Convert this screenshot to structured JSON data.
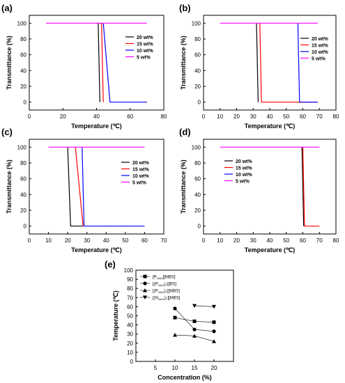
{
  "chart_data": [
    {
      "panel": "(a)",
      "type": "line",
      "xlabel": "Temperature (℃)",
      "ylabel": "Transmittance (%)",
      "xlim": [
        0,
        80
      ],
      "ylim": [
        -10,
        110
      ],
      "xticks": [
        0,
        20,
        40,
        60,
        80
      ],
      "yticks": [
        0,
        20,
        40,
        60,
        80,
        100
      ],
      "legend": "right",
      "series": [
        {
          "name": "20 wt%",
          "color": "#000000",
          "x": [
            40,
            41,
            42
          ],
          "y": [
            100,
            100,
            0
          ]
        },
        {
          "name": "15 wt%",
          "color": "#ff0000",
          "x": [
            42,
            43,
            44
          ],
          "y": [
            100,
            100,
            0
          ]
        },
        {
          "name": "10 wt%",
          "color": "#0000ff",
          "x": [
            44,
            48,
            70
          ],
          "y": [
            100,
            0,
            0
          ]
        },
        {
          "name": "5 wt%",
          "color": "#ff00ff",
          "x": [
            10,
            70
          ],
          "y": [
            100,
            100
          ]
        }
      ]
    },
    {
      "panel": "(b)",
      "type": "line",
      "xlabel": "Temperature (℃)",
      "ylabel": "Transmittance (%)",
      "xlim": [
        0,
        80
      ],
      "ylim": [
        -10,
        110
      ],
      "xticks": [
        0,
        10,
        20,
        30,
        40,
        50,
        60,
        70,
        80
      ],
      "yticks": [
        0,
        20,
        40,
        60,
        80,
        100
      ],
      "legend": "right",
      "series": [
        {
          "name": "20 wt%",
          "color": "#000000",
          "x": [
            32,
            33
          ],
          "y": [
            100,
            0
          ]
        },
        {
          "name": "15 wt%",
          "color": "#ff0000",
          "x": [
            34,
            35,
            69
          ],
          "y": [
            100,
            0,
            0
          ]
        },
        {
          "name": "10 wt%",
          "color": "#0000ff",
          "x": [
            57,
            58,
            69
          ],
          "y": [
            100,
            0,
            0
          ]
        },
        {
          "name": "5 wt%",
          "color": "#ff00ff",
          "x": [
            10,
            69
          ],
          "y": [
            100,
            100
          ]
        }
      ]
    },
    {
      "panel": "(c)",
      "type": "line",
      "xlabel": "Temperature (℃)",
      "ylabel": "Transmittance (%)",
      "xlim": [
        0,
        70
      ],
      "ylim": [
        -10,
        110
      ],
      "xticks": [
        0,
        10,
        20,
        30,
        40,
        50,
        60,
        70
      ],
      "yticks": [
        0,
        20,
        40,
        60,
        80,
        100
      ],
      "legend": "right",
      "series": [
        {
          "name": "20 wt%",
          "color": "#000000",
          "x": [
            20,
            21.5,
            28
          ],
          "y": [
            100,
            0,
            0
          ]
        },
        {
          "name": "15 wt%",
          "color": "#ff0000",
          "x": [
            24,
            28
          ],
          "y": [
            100,
            0
          ]
        },
        {
          "name": "10 wt%",
          "color": "#0000ff",
          "x": [
            27.5,
            28.5,
            60
          ],
          "y": [
            100,
            0,
            0
          ]
        },
        {
          "name": "5 wt%",
          "color": "#ff00ff",
          "x": [
            10,
            60
          ],
          "y": [
            100,
            100
          ]
        }
      ]
    },
    {
      "panel": "(d)",
      "type": "line",
      "xlabel": "Temperature (℃)",
      "ylabel": "Transmittance (%)",
      "xlim": [
        0,
        80
      ],
      "ylim": [
        -10,
        110
      ],
      "xticks": [
        0,
        10,
        20,
        30,
        40,
        50,
        60,
        70,
        80
      ],
      "yticks": [
        0,
        20,
        40,
        60,
        80,
        100
      ],
      "legend": "left",
      "series": [
        {
          "name": "20 wt%",
          "color": "#000000",
          "x": [
            59.5,
            60.5
          ],
          "y": [
            100,
            0
          ]
        },
        {
          "name": "15 wt%",
          "color": "#ff0000",
          "x": [
            60,
            61,
            70
          ],
          "y": [
            100,
            0,
            0
          ]
        },
        {
          "name": "10 wt%",
          "color": "#0000ff",
          "x": [],
          "y": []
        },
        {
          "name": "5 wt%",
          "color": "#ff00ff",
          "x": [
            10,
            70
          ],
          "y": [
            100,
            100
          ]
        }
      ]
    },
    {
      "panel": "(e)",
      "type": "scatter",
      "xlabel": "Concentration (%)",
      "ylabel": "Temperature (℃)",
      "xlim": [
        0,
        25
      ],
      "ylim": [
        0,
        100
      ],
      "xticks": [
        5,
        10,
        15,
        20
      ],
      "yticks": [
        0,
        10,
        20,
        30,
        40,
        50,
        60,
        70,
        80,
        90,
        100
      ],
      "legend": "top-left",
      "series": [
        {
          "name": "[P4444][MBS]",
          "base": "[P",
          "sub": "4444",
          "rest": "][MBS]",
          "marker": "square",
          "x": [
            10,
            15,
            20
          ],
          "y": [
            48,
            44,
            43
          ]
        },
        {
          "name": "[(P4444)2][BS]",
          "base": "[(P",
          "sub": "4444",
          "rest": ")₂][BS]",
          "marker": "circle",
          "x": [
            10,
            15,
            20
          ],
          "y": [
            58,
            35,
            33
          ]
        },
        {
          "name": "[(P4444)2][MBS]",
          "base": "[(P",
          "sub": "4444",
          "rest": ")₂][MBS]",
          "marker": "triangle-up",
          "x": [
            10,
            15,
            20
          ],
          "y": [
            29,
            28,
            22
          ]
        },
        {
          "name": "[(N4444)2][MBS]",
          "base": "[(N",
          "sub": "4444",
          "rest": ")₂][MBS]",
          "marker": "triangle-down",
          "x": [
            15,
            20
          ],
          "y": [
            61,
            60
          ]
        }
      ]
    }
  ]
}
